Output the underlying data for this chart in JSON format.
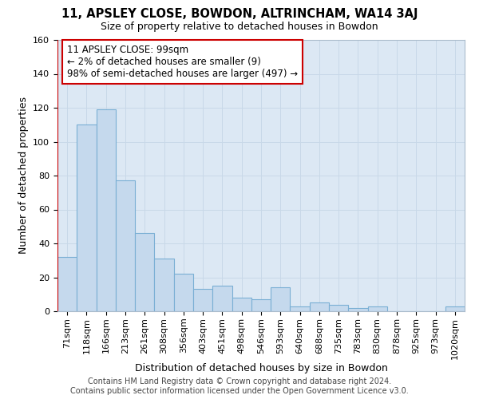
{
  "title": "11, APSLEY CLOSE, BOWDON, ALTRINCHAM, WA14 3AJ",
  "subtitle": "Size of property relative to detached houses in Bowdon",
  "xlabel": "Distribution of detached houses by size in Bowdon",
  "ylabel": "Number of detached properties",
  "categories": [
    "71sqm",
    "118sqm",
    "166sqm",
    "213sqm",
    "261sqm",
    "308sqm",
    "356sqm",
    "403sqm",
    "451sqm",
    "498sqm",
    "546sqm",
    "593sqm",
    "640sqm",
    "688sqm",
    "735sqm",
    "783sqm",
    "830sqm",
    "878sqm",
    "925sqm",
    "973sqm",
    "1020sqm"
  ],
  "values": [
    32,
    110,
    119,
    77,
    46,
    31,
    22,
    13,
    15,
    8,
    7,
    14,
    3,
    5,
    4,
    2,
    3,
    0,
    0,
    0,
    3
  ],
  "bar_color": "#c5d9ed",
  "bar_edge_color": "#7aafd4",
  "highlight_color": "#cc0000",
  "annotation_line1": "11 APSLEY CLOSE: 99sqm",
  "annotation_line2": "← 2% of detached houses are smaller (9)",
  "annotation_line3": "98% of semi-detached houses are larger (497) →",
  "ylim": [
    0,
    160
  ],
  "yticks": [
    0,
    20,
    40,
    60,
    80,
    100,
    120,
    140,
    160
  ],
  "grid_color": "#c8d8e8",
  "background_color": "#dce8f4",
  "footer_line1": "Contains HM Land Registry data © Crown copyright and database right 2024.",
  "footer_line2": "Contains public sector information licensed under the Open Government Licence v3.0.",
  "title_fontsize": 10.5,
  "subtitle_fontsize": 9,
  "xlabel_fontsize": 9,
  "ylabel_fontsize": 9,
  "tick_fontsize": 8,
  "annotation_fontsize": 8.5,
  "footer_fontsize": 7
}
